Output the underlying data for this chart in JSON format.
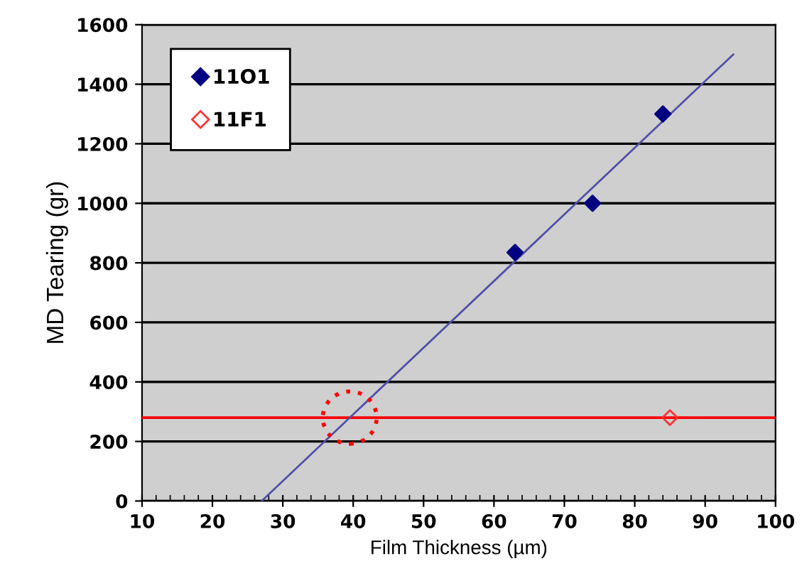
{
  "chart_data": {
    "type": "scatter",
    "xlabel": "Film Thickness (µm)",
    "ylabel": "MD Tearing (gr)",
    "xlim": [
      10,
      100
    ],
    "xticks": [
      10,
      20,
      30,
      40,
      50,
      60,
      70,
      80,
      90,
      100
    ],
    "ylim": [
      0,
      1600
    ],
    "yticks": [
      0,
      200,
      400,
      600,
      800,
      1000,
      1200,
      1400,
      1600
    ],
    "grid": "y",
    "legend": "top left",
    "series": [
      {
        "name": "11O1",
        "color": "#000080",
        "x": [
          63,
          74,
          84
        ],
        "values": [
          835,
          1000,
          1300
        ],
        "marker": "diamond"
      },
      {
        "name": "11F1",
        "color": "#ff3333",
        "x": [
          85
        ],
        "values": [
          280
        ],
        "marker": "diamond"
      },
      {
        "type": "line",
        "color": "#5050a8",
        "x": [
          27,
          94
        ],
        "values": [
          0,
          1500
        ],
        "marker": "none"
      }
    ],
    "ref_lines": [
      {
        "axis": "y",
        "value": 280,
        "color": "#ff0000"
      }
    ]
  }
}
